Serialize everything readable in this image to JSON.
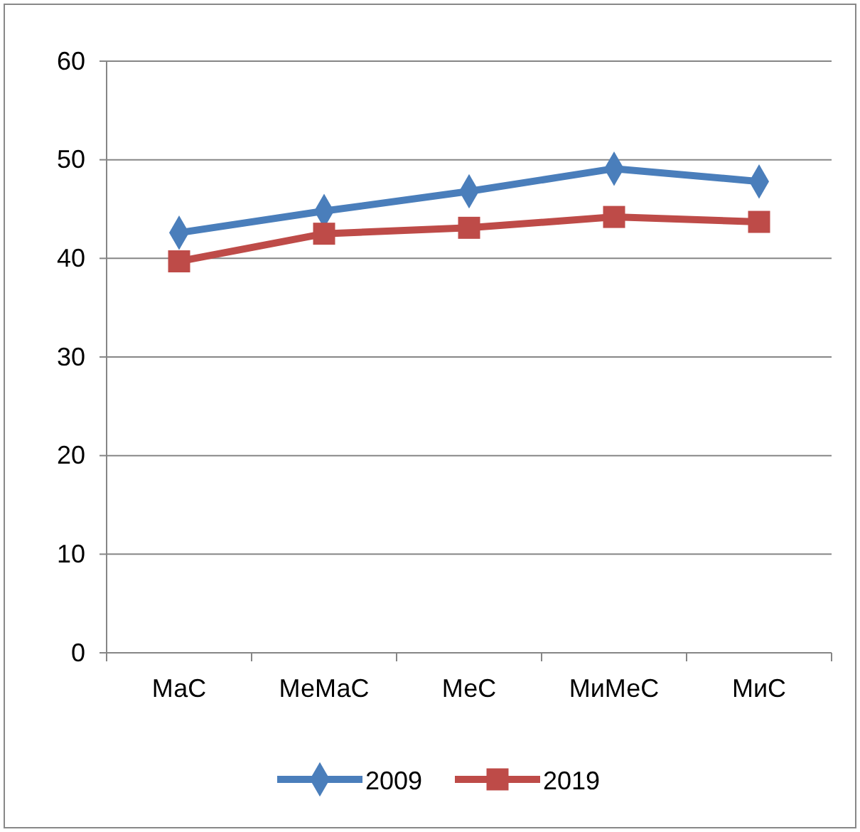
{
  "chart_data": {
    "type": "line",
    "categories": [
      "МаС",
      "МеМаС",
      "МеС",
      "МиМеС",
      "МиС"
    ],
    "series": [
      {
        "name": "2009",
        "color": "#4a7ebb",
        "values": [
          42.6,
          44.8,
          46.8,
          49.1,
          47.8
        ],
        "marker": "diamond"
      },
      {
        "name": "2019",
        "color": "#be4b48",
        "values": [
          39.7,
          42.5,
          43.1,
          44.2,
          43.7
        ],
        "marker": "square"
      }
    ],
    "ylim": [
      0,
      60
    ],
    "yticks": [
      0,
      10,
      20,
      30,
      40,
      50,
      60
    ],
    "grid": "y",
    "legend": "bottom",
    "line_style": "solid"
  }
}
